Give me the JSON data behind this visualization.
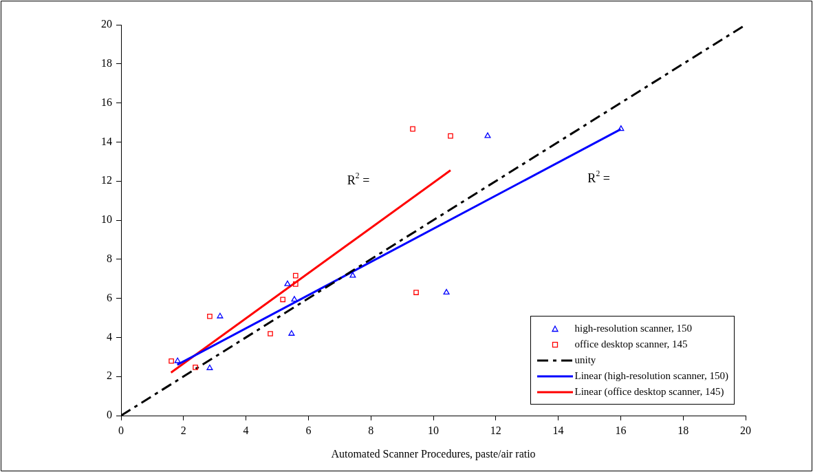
{
  "chart_data": {
    "type": "scatter",
    "xlabel": "Automated Scanner Procedures, paste/air ratio",
    "xlim": [
      0,
      20
    ],
    "xticks": [
      0,
      2,
      4,
      6,
      8,
      10,
      12,
      14,
      16,
      18,
      20
    ],
    "ylim": [
      0,
      20
    ],
    "yticks": [
      0,
      2,
      4,
      6,
      8,
      10,
      12,
      14,
      16,
      18,
      20
    ],
    "grid": false,
    "legend": "bottom right",
    "series": [
      {
        "name": "high-resolution scanner, 150",
        "type": "scatter",
        "marker": "triangle",
        "color": "#0000ff",
        "x": [
          1.81,
          2.84,
          3.17,
          5.33,
          5.46,
          5.55,
          7.42,
          10.42,
          11.74,
          16.01
        ],
        "values": [
          2.79,
          2.43,
          5.08,
          6.73,
          4.19,
          5.94,
          7.16,
          6.3,
          14.31,
          14.67
        ]
      },
      {
        "name": "office desktop scanner, 145",
        "type": "scatter",
        "marker": "square",
        "color": "#ff0000",
        "x": [
          1.61,
          2.38,
          2.84,
          4.78,
          5.18,
          5.59,
          5.59,
          9.34,
          9.45,
          10.55
        ],
        "values": [
          2.79,
          2.47,
          5.08,
          4.19,
          5.94,
          7.16,
          6.73,
          14.67,
          6.3,
          14.31
        ]
      },
      {
        "name": "unity",
        "type": "line",
        "marker": "none",
        "line_style": "dashed",
        "color": "#000000",
        "x": [
          0,
          20
        ],
        "values": [
          0,
          20
        ]
      },
      {
        "name": "Linear (high-resolution scanner, 150)",
        "type": "line",
        "marker": "none",
        "line_style": "solid",
        "color": "#0000ff",
        "x": [
          1.8,
          16.0
        ],
        "values": [
          2.6,
          14.65
        ]
      },
      {
        "name": "Linear (office desktop scanner, 145)",
        "type": "line",
        "marker": "none",
        "line_style": "solid",
        "color": "#ff0000",
        "x": [
          1.6,
          10.55
        ],
        "values": [
          2.2,
          12.55
        ]
      }
    ],
    "annotations": [
      "R$^{2}$ =",
      "R$^{2}$ ="
    ]
  }
}
